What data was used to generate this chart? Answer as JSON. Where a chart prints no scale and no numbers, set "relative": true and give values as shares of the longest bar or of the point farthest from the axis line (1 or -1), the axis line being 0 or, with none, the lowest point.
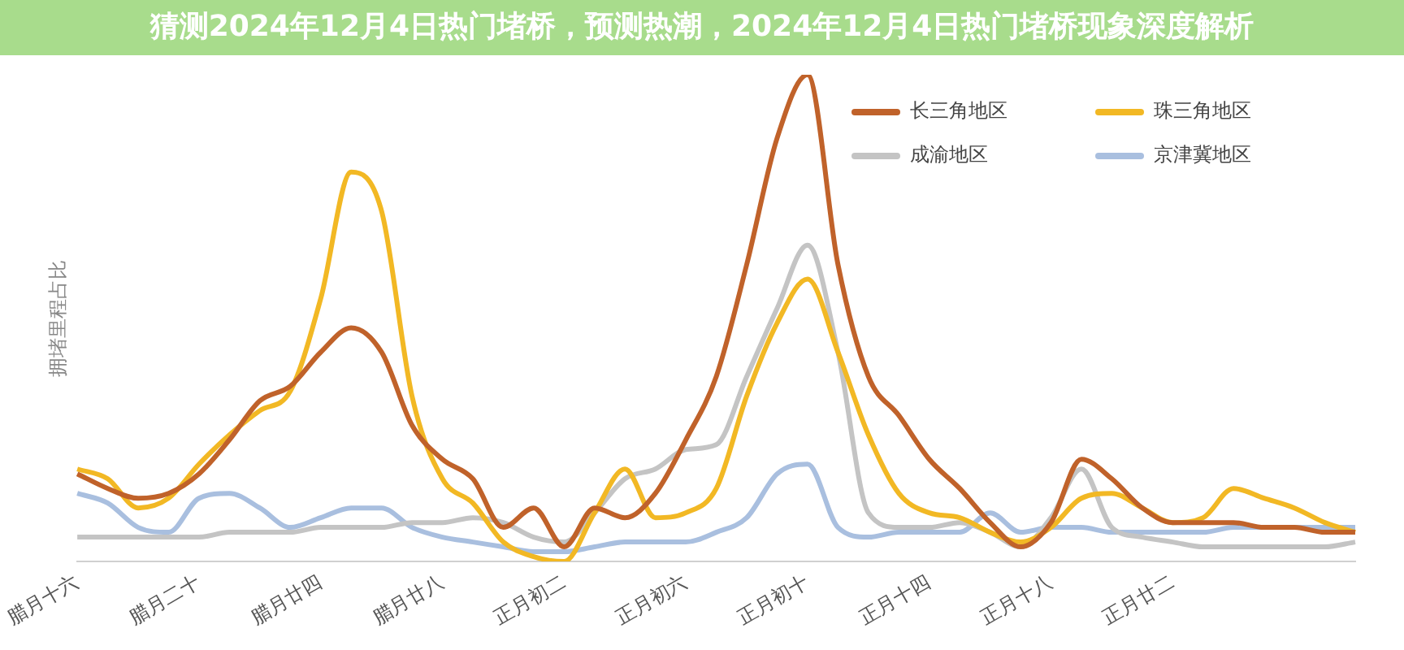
{
  "chart_data": {
    "type": "line",
    "title": "猜测2024年12月4日热门堵桥，预测热潮，2024年12月4日热门堵桥现象深度解析",
    "ylabel": "拥堵里程占比",
    "relative": true,
    "grid": false,
    "legend": "top right",
    "categories": [
      "腊月十六",
      null,
      null,
      null,
      "腊月二十",
      null,
      null,
      null,
      "腊月廿四",
      null,
      null,
      null,
      "腊月廿八",
      null,
      null,
      null,
      "正月初二",
      null,
      null,
      null,
      "正月初六",
      null,
      null,
      null,
      "正月初十",
      null,
      null,
      null,
      "正月十四",
      null,
      null,
      null,
      "正月十八",
      null,
      null,
      null,
      "正月廿二",
      null,
      null,
      null,
      null,
      null,
      null
    ],
    "series": [
      {
        "name": "长三角地区",
        "color": "#c0622a",
        "values": [
          0.18,
          0.15,
          0.13,
          0.14,
          0.18,
          0.25,
          0.33,
          0.36,
          0.43,
          0.48,
          0.43,
          0.28,
          0.21,
          0.17,
          0.07,
          0.11,
          0.03,
          0.11,
          0.09,
          0.14,
          0.25,
          0.38,
          0.61,
          0.87,
          1,
          0.61,
          0.38,
          0.3,
          0.21,
          0.15,
          0.08,
          0.03,
          0.08,
          0.21,
          0.17,
          0.11,
          0.08,
          0.08,
          0.08,
          0.07,
          0.07,
          0.06,
          0.06
        ]
      },
      {
        "name": "珠三角地区",
        "color": "#f2b824",
        "values": [
          0.19,
          0.17,
          0.11,
          0.13,
          0.2,
          0.26,
          0.31,
          0.35,
          0.54,
          0.8,
          0.72,
          0.34,
          0.17,
          0.12,
          0.04,
          0.01,
          0.0,
          0.1,
          0.19,
          0.09,
          0.1,
          0.15,
          0.34,
          0.49,
          0.58,
          0.43,
          0.26,
          0.14,
          0.1,
          0.09,
          0.06,
          0.04,
          0.07,
          0.13,
          0.14,
          0.11,
          0.08,
          0.09,
          0.15,
          0.13,
          0.11,
          0.08,
          0.06
        ]
      },
      {
        "name": "成渝地区",
        "color": "#c4c4c4",
        "values": [
          0.05,
          0.05,
          0.05,
          0.05,
          0.05,
          0.06,
          0.06,
          0.06,
          0.07,
          0.07,
          0.07,
          0.08,
          0.08,
          0.09,
          0.08,
          0.05,
          0.04,
          0.1,
          0.17,
          0.19,
          0.23,
          0.24,
          0.38,
          0.52,
          0.65,
          0.43,
          0.1,
          0.07,
          0.07,
          0.08,
          0.06,
          0.03,
          0.09,
          0.19,
          0.07,
          0.05,
          0.04,
          0.03,
          0.03,
          0.03,
          0.03,
          0.03,
          0.04
        ]
      },
      {
        "name": "京津冀地区",
        "color": "#a9bfdf",
        "values": [
          0.14,
          0.12,
          0.07,
          0.06,
          0.13,
          0.14,
          0.11,
          0.07,
          0.09,
          0.11,
          0.11,
          0.07,
          0.05,
          0.04,
          0.03,
          0.02,
          0.02,
          0.03,
          0.04,
          0.04,
          0.04,
          0.06,
          0.09,
          0.18,
          0.2,
          0.07,
          0.05,
          0.06,
          0.06,
          0.06,
          0.1,
          0.06,
          0.07,
          0.07,
          0.06,
          0.06,
          0.06,
          0.06,
          0.07,
          0.07,
          0.07,
          0.07,
          0.07
        ]
      }
    ]
  }
}
